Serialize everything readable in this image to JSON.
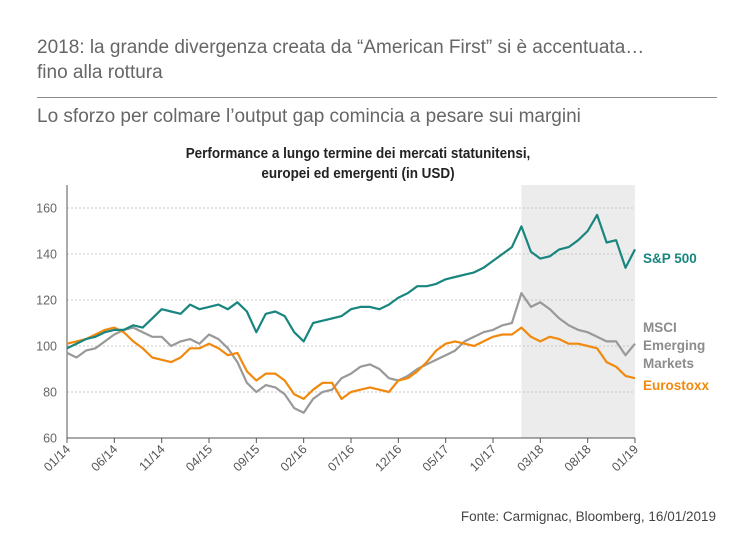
{
  "header": {
    "title_line1": "2018: la grande divergenza creata da “American First” si è accentuata…",
    "title_line2": "fino alla rottura",
    "subtitle": "Lo sforzo per colmare l’output gap comincia a pesare sui margini"
  },
  "colors": {
    "sp500": "#18867f",
    "msci": "#999999",
    "eurostoxx": "#f0890d",
    "shade": "#ececec",
    "grid": "#c8c8c8",
    "axis": "#555555"
  },
  "chart_data": {
    "type": "line",
    "title_line1": "Performance a lungo termine dei mercati statunitensi,",
    "title_line2": "europei ed emergenti (in USD)",
    "xlabel": "",
    "ylabel": "",
    "ylim": [
      60,
      170
    ],
    "yticks": [
      60,
      80,
      100,
      120,
      140,
      160
    ],
    "grid": true,
    "x_tick_labels": [
      "01/14",
      "06/14",
      "11/14",
      "04/15",
      "09/15",
      "02/16",
      "07/16",
      "12/16",
      "05/17",
      "10/17",
      "03/18",
      "08/18",
      "01/19"
    ],
    "x_range": [
      "2014-01",
      "2019-01"
    ],
    "shaded_period": {
      "from": "2018-01",
      "to": "2019-01"
    },
    "x": [
      "2014-01",
      "2014-02",
      "2014-03",
      "2014-04",
      "2014-05",
      "2014-06",
      "2014-07",
      "2014-08",
      "2014-09",
      "2014-10",
      "2014-11",
      "2014-12",
      "2015-01",
      "2015-02",
      "2015-03",
      "2015-04",
      "2015-05",
      "2015-06",
      "2015-07",
      "2015-08",
      "2015-09",
      "2015-10",
      "2015-11",
      "2015-12",
      "2016-01",
      "2016-02",
      "2016-03",
      "2016-04",
      "2016-05",
      "2016-06",
      "2016-07",
      "2016-08",
      "2016-09",
      "2016-10",
      "2016-11",
      "2016-12",
      "2017-01",
      "2017-02",
      "2017-03",
      "2017-04",
      "2017-05",
      "2017-06",
      "2017-07",
      "2017-08",
      "2017-09",
      "2017-10",
      "2017-11",
      "2017-12",
      "2018-01",
      "2018-02",
      "2018-03",
      "2018-04",
      "2018-05",
      "2018-06",
      "2018-07",
      "2018-08",
      "2018-09",
      "2018-10",
      "2018-11",
      "2018-12",
      "2019-01"
    ],
    "series": [
      {
        "name": "S&P 500",
        "values": [
          99,
          101,
          103,
          104,
          106,
          107,
          107,
          109,
          108,
          112,
          116,
          115,
          114,
          118,
          116,
          117,
          118,
          116,
          119,
          115,
          106,
          114,
          115,
          113,
          106,
          102,
          110,
          111,
          112,
          113,
          116,
          117,
          117,
          116,
          118,
          121,
          123,
          126,
          126,
          127,
          129,
          130,
          131,
          132,
          134,
          137,
          140,
          143,
          152,
          141,
          138,
          139,
          142,
          143,
          146,
          150,
          157,
          145,
          146,
          134,
          142
        ]
      },
      {
        "name": "MSCI Emerging Markets",
        "values": [
          97,
          95,
          98,
          99,
          102,
          105,
          107,
          108,
          106,
          104,
          104,
          100,
          102,
          103,
          101,
          105,
          103,
          99,
          93,
          84,
          80,
          83,
          82,
          79,
          73,
          71,
          77,
          80,
          81,
          86,
          88,
          91,
          92,
          90,
          86,
          85,
          87,
          90,
          92,
          94,
          96,
          98,
          102,
          104,
          106,
          107,
          109,
          110,
          123,
          117,
          119,
          116,
          112,
          109,
          107,
          106,
          104,
          102,
          102,
          96,
          101
        ]
      },
      {
        "name": "Eurostoxx",
        "values": [
          101,
          102,
          103,
          105,
          107,
          108,
          106,
          102,
          99,
          95,
          94,
          93,
          95,
          99,
          99,
          101,
          99,
          96,
          97,
          89,
          85,
          88,
          88,
          85,
          79,
          77,
          81,
          84,
          84,
          77,
          80,
          81,
          82,
          81,
          80,
          85,
          86,
          89,
          93,
          98,
          101,
          102,
          101,
          100,
          102,
          104,
          105,
          105,
          108,
          104,
          102,
          104,
          103,
          101,
          101,
          100,
          99,
          93,
          91,
          87,
          86
        ]
      }
    ],
    "legend": {
      "sp500": "S&P 500",
      "msci_line1": "MSCI",
      "msci_line2": "Emerging",
      "msci_line3": "Markets",
      "eurostoxx": "Eurostoxx"
    }
  },
  "source": "Fonte: Carmignac, Bloomberg, 16/01/2019"
}
